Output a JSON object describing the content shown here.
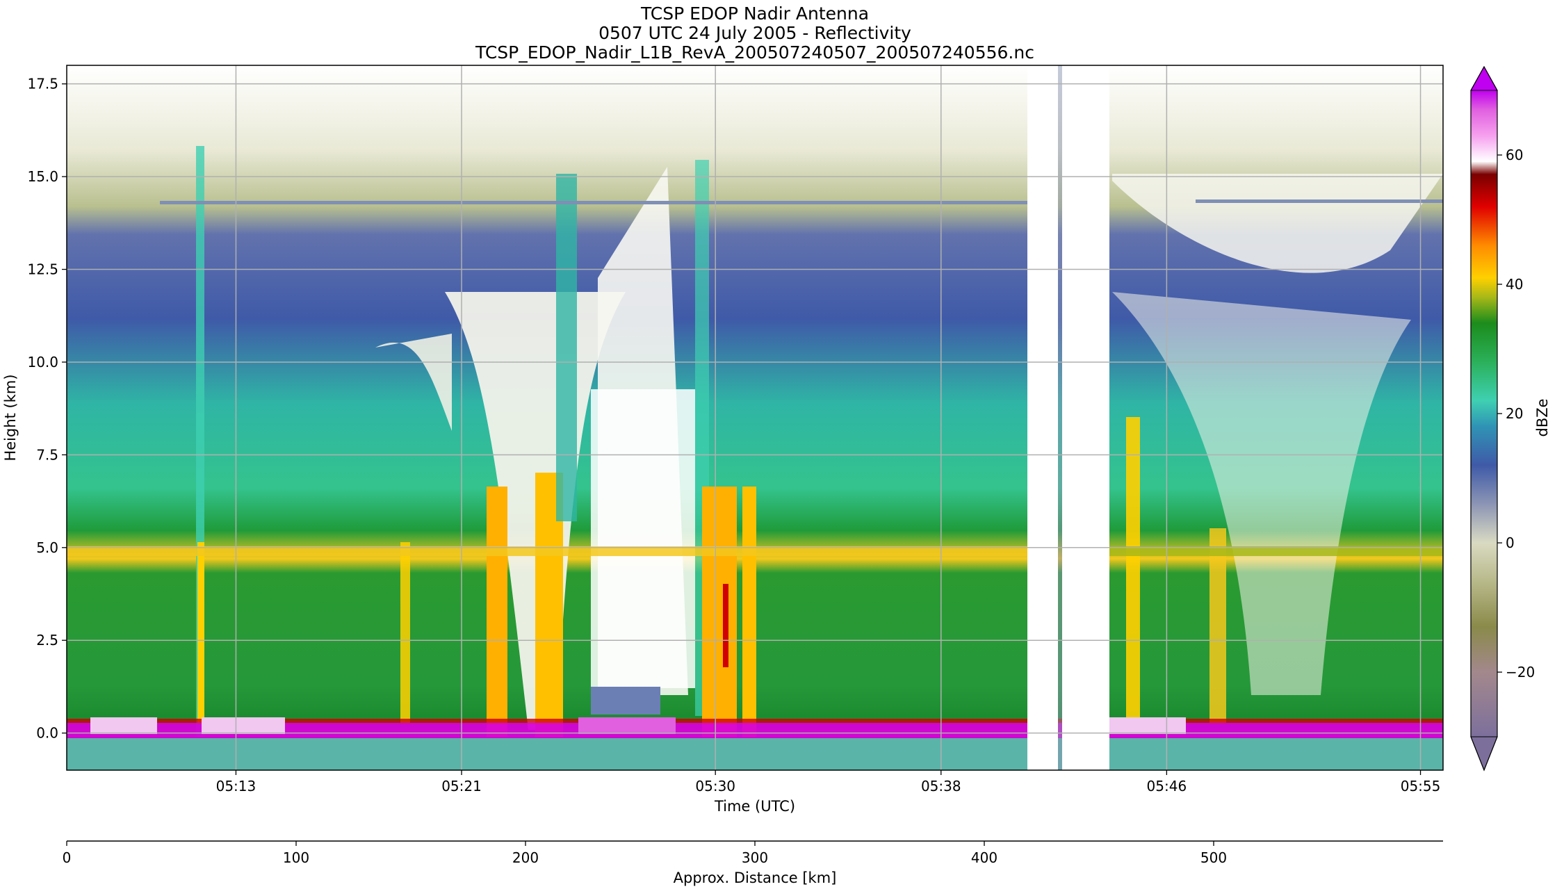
{
  "chart_data": {
    "type": "heatmap",
    "title": [
      "TCSP EDOP Nadir Antenna",
      "0507 UTC 24 July 2005 - Reflectivity",
      "TCSP_EDOP_Nadir_L1B_RevA_200507240507_200507240556.nc"
    ],
    "xlabel": "Time (UTC)",
    "ylabel": "Height (km)",
    "x2label": "Approx. Distance [km]",
    "colorbar_label": "dBZe",
    "x_time_ticks": [
      "05:13",
      "05:21",
      "05:30",
      "05:38",
      "05:46",
      "05:55"
    ],
    "y_ticks": [
      "0.0",
      "2.5",
      "5.0",
      "7.5",
      "10.0",
      "12.5",
      "15.0",
      "17.5"
    ],
    "ylim": [
      -1.0,
      18.0
    ],
    "distance_ticks": [
      "0",
      "100",
      "200",
      "300",
      "400",
      "500"
    ],
    "distance_range": [
      0,
      600
    ],
    "colorbar_ticks": [
      "−20",
      "0",
      "20",
      "40",
      "60"
    ],
    "colorbar_range": [
      -30,
      70
    ],
    "grid": true,
    "data_gap_time": [
      "05:43",
      "05:45"
    ],
    "melting_layer_height_km": 5.0,
    "surface_height_km": 0.0,
    "tropopause_echo_height_km": 14.4
  }
}
